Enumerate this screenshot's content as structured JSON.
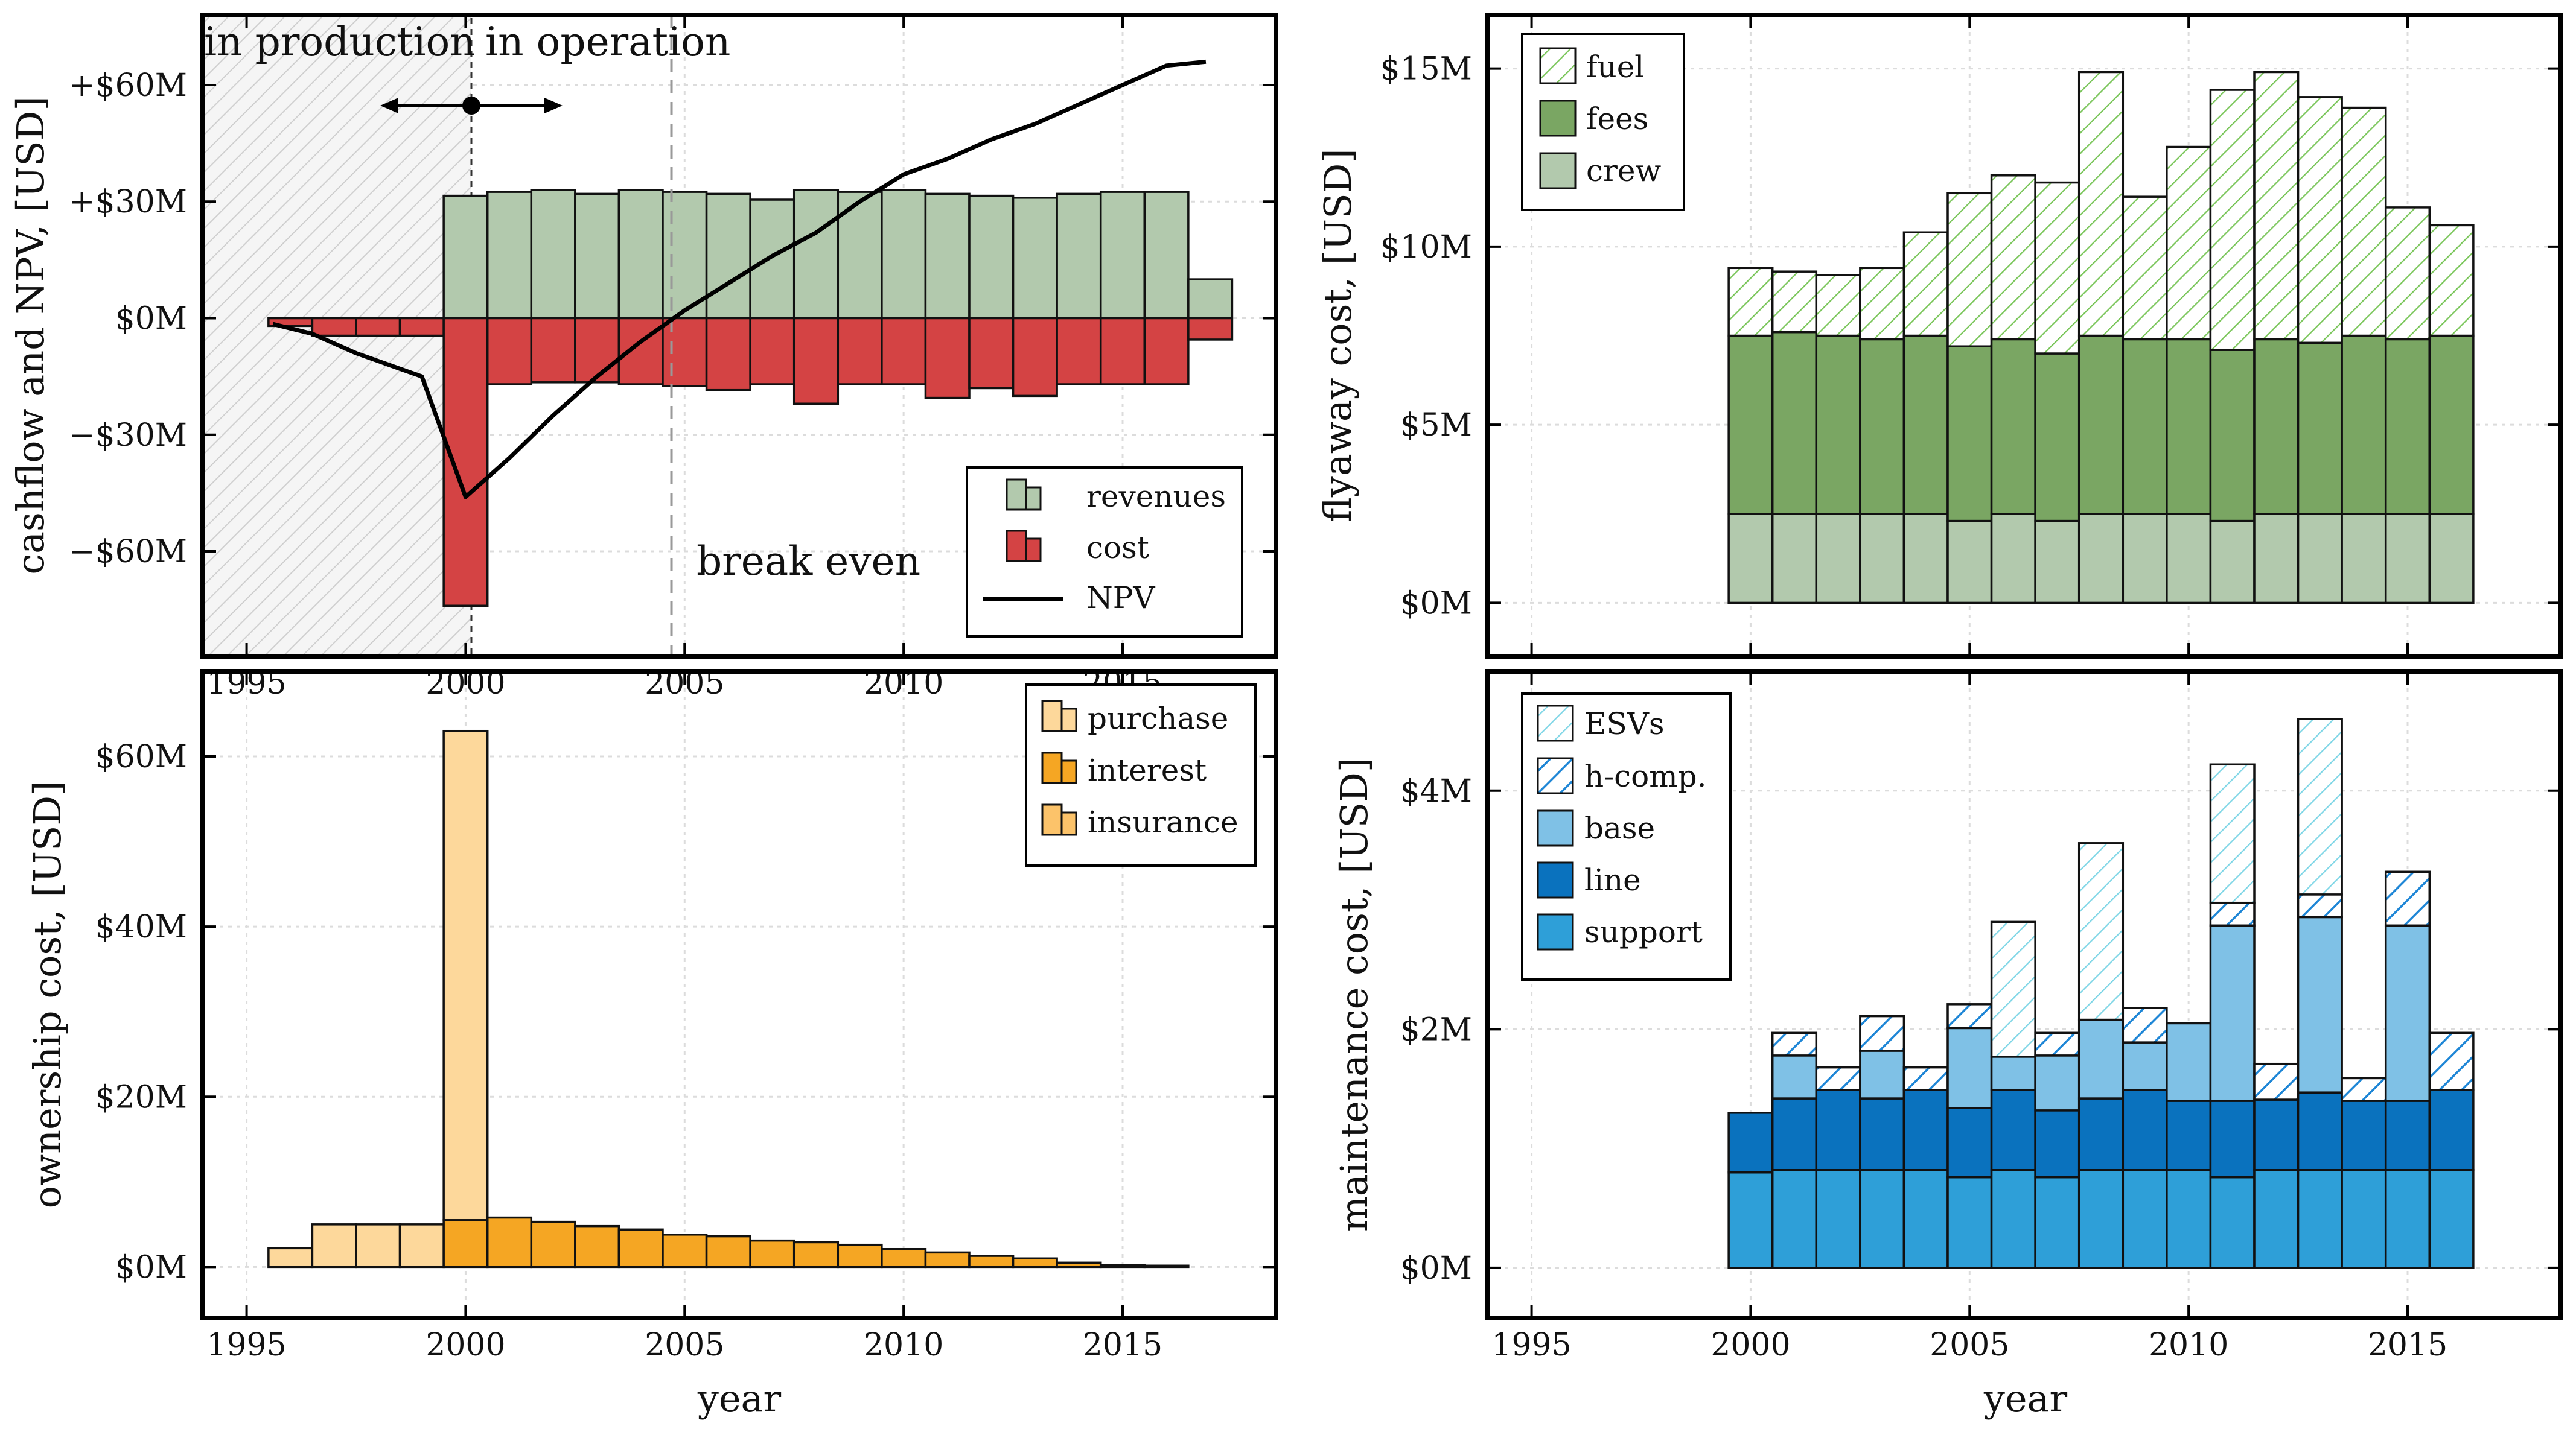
{
  "palette": {
    "revenues": "#b2c9ad",
    "cost": "#d44344",
    "crew": "#b2c9ad",
    "fees": "#7aa663",
    "fuel_line": "#79c559",
    "purchase": "#fdd89b",
    "interest": "#f5a623",
    "support": "#2e9fd8",
    "line": "#0a72be",
    "base": "#7fc1e6",
    "hcomp_line": "#1e86d6",
    "esv_line": "#7fd6e6"
  },
  "chart_data": [
    {
      "id": "cashflow",
      "type": "bar",
      "ylabel": "cashflow and NPV, [USD]",
      "xlim": [
        1994,
        2018.5
      ],
      "ylim": [
        -87,
        78
      ],
      "yticks": [
        -60,
        -30,
        0,
        30,
        60
      ],
      "ytick_labels": [
        "−$60M",
        "−$30M",
        "$0M",
        "+$30M",
        "+$60M"
      ],
      "xticks": [
        1995,
        2000,
        2005,
        2010,
        2015
      ],
      "xtick_labels": [
        "1995",
        "2000",
        "2005",
        "2010",
        "2015"
      ],
      "years": [
        1996,
        1997,
        1998,
        1999,
        2000,
        2001,
        2002,
        2003,
        2004,
        2005,
        2006,
        2007,
        2008,
        2009,
        2010,
        2011,
        2012,
        2013,
        2014,
        2015,
        2016,
        2017
      ],
      "series": [
        {
          "name": "revenues",
          "values": [
            0,
            0,
            0,
            0,
            31.5,
            32.5,
            33,
            32,
            33,
            32.5,
            32,
            30.5,
            33,
            32.5,
            33,
            32,
            31.5,
            31,
            32,
            32.5,
            32.5,
            10
          ]
        },
        {
          "name": "cost",
          "values": [
            -2,
            -4.5,
            -4.5,
            -4.5,
            -74,
            -17,
            -16.5,
            -16.5,
            -17,
            -17.5,
            -18.5,
            -17,
            -22,
            -17,
            -17,
            -20.5,
            -18,
            -20,
            -17,
            -17,
            -17,
            -5.5
          ]
        }
      ],
      "npv": {
        "name": "NPV",
        "x": [
          1995.6,
          1996.5,
          1997.5,
          1998.5,
          1999.0,
          2000.0,
          2001.0,
          2002.0,
          2003.0,
          2004.0,
          2005.0,
          2006.0,
          2007.0,
          2008.0,
          2009.0,
          2010.0,
          2011.0,
          2012.0,
          2013.0,
          2014.0,
          2015.0,
          2016.0,
          2016.9
        ],
        "y": [
          -1.5,
          -4,
          -9,
          -13,
          -15,
          -46,
          -36,
          -25,
          -15,
          -6,
          2,
          9,
          16,
          22,
          30,
          37,
          41,
          46,
          50,
          55,
          60,
          65,
          66
        ]
      },
      "annotations": {
        "in_production": "in production",
        "in_operation": "in operation",
        "break_even": "break even",
        "production_end": 2000,
        "break_even_year": 2004.7
      },
      "legend": {
        "position": "bottom-right",
        "entries": [
          "revenues",
          "cost",
          "NPV"
        ]
      }
    },
    {
      "id": "flyaway",
      "type": "bar",
      "ylabel": "flyaway cost, [USD]",
      "xlim": [
        1994,
        2018.5
      ],
      "ylim": [
        -1.5,
        16.5
      ],
      "yticks": [
        0,
        5,
        10,
        15
      ],
      "ytick_labels": [
        "$0M",
        "$5M",
        "$10M",
        "$15M"
      ],
      "xticks": [
        1995,
        2000,
        2005,
        2010,
        2015
      ],
      "years": [
        2000,
        2001,
        2002,
        2003,
        2004,
        2005,
        2006,
        2007,
        2008,
        2009,
        2010,
        2011,
        2012,
        2013,
        2014,
        2015,
        2016
      ],
      "series": [
        {
          "name": "crew",
          "values": [
            2.5,
            2.5,
            2.5,
            2.5,
            2.5,
            2.3,
            2.5,
            2.3,
            2.5,
            2.5,
            2.5,
            2.3,
            2.5,
            2.5,
            2.5,
            2.5,
            2.5
          ]
        },
        {
          "name": "fees",
          "values": [
            5.0,
            5.1,
            5.0,
            4.9,
            5.0,
            4.9,
            4.9,
            4.7,
            5.0,
            4.9,
            4.9,
            4.8,
            4.9,
            4.8,
            5.0,
            4.9,
            5.0
          ]
        },
        {
          "name": "fuel",
          "values": [
            1.9,
            1.7,
            1.7,
            2.0,
            2.9,
            4.3,
            4.6,
            4.8,
            7.4,
            4.0,
            5.4,
            7.3,
            7.5,
            6.9,
            6.4,
            3.7,
            3.1
          ]
        }
      ],
      "legend": {
        "position": "top-left",
        "entries": [
          "fuel",
          "fees",
          "crew"
        ]
      }
    },
    {
      "id": "ownership",
      "type": "bar",
      "ylabel": "ownership cost, [USD]",
      "xlabel": "year",
      "xlim": [
        1994,
        2018.5
      ],
      "ylim": [
        -6,
        70
      ],
      "yticks": [
        0,
        20,
        40,
        60
      ],
      "ytick_labels": [
        "$0M",
        "$20M",
        "$40M",
        "$60M"
      ],
      "xticks": [
        1995,
        2000,
        2005,
        2010,
        2015
      ],
      "xtick_labels": [
        "1995",
        "2000",
        "2005",
        "2010",
        "2015"
      ],
      "years": [
        1996,
        1997,
        1998,
        1999,
        2000,
        2001,
        2002,
        2003,
        2004,
        2005,
        2006,
        2007,
        2008,
        2009,
        2010,
        2011,
        2012,
        2013,
        2014,
        2015,
        2016
      ],
      "series": [
        {
          "name": "interest",
          "values": [
            0,
            0,
            0,
            0,
            5.5,
            5.8,
            5.3,
            4.8,
            4.4,
            3.8,
            3.6,
            3.1,
            2.9,
            2.6,
            2.1,
            1.7,
            1.3,
            1.0,
            0.5,
            0.25,
            0.15
          ]
        },
        {
          "name": "purchase",
          "values": [
            2.2,
            5.0,
            5.0,
            5.0,
            57.5,
            0,
            0,
            0,
            0,
            0,
            0,
            0,
            0,
            0,
            0,
            0,
            0,
            0,
            0,
            0,
            0
          ]
        },
        {
          "name": "insurance",
          "values": [
            0,
            0,
            0,
            0,
            0,
            0,
            0,
            0,
            0,
            0,
            0,
            0,
            0,
            0,
            0,
            0,
            0,
            0,
            0,
            0,
            0
          ]
        }
      ],
      "legend": {
        "position": "top-right",
        "entries": [
          "purchase",
          "interest",
          "insurance"
        ]
      }
    },
    {
      "id": "maintenance",
      "type": "bar",
      "ylabel": "maintenance cost, [USD]",
      "xlabel": "year",
      "xlim": [
        1994,
        2018.5
      ],
      "ylim": [
        -0.42,
        5.0
      ],
      "yticks": [
        0,
        2,
        4
      ],
      "ytick_labels": [
        "$0M",
        "$2M",
        "$4M"
      ],
      "xticks": [
        1995,
        2000,
        2005,
        2010,
        2015
      ],
      "xtick_labels": [
        "1995",
        "2000",
        "2005",
        "2010",
        "2015"
      ],
      "years": [
        2000,
        2001,
        2002,
        2003,
        2004,
        2005,
        2006,
        2007,
        2008,
        2009,
        2010,
        2011,
        2012,
        2013,
        2014,
        2015,
        2016
      ],
      "series": [
        {
          "name": "support",
          "values": [
            0.8,
            0.82,
            0.82,
            0.82,
            0.82,
            0.76,
            0.82,
            0.76,
            0.82,
            0.82,
            0.82,
            0.76,
            0.82,
            0.82,
            0.82,
            0.82,
            0.82
          ]
        },
        {
          "name": "line",
          "values": [
            0.5,
            0.6,
            0.67,
            0.6,
            0.67,
            0.58,
            0.67,
            0.56,
            0.6,
            0.67,
            0.58,
            0.64,
            0.59,
            0.65,
            0.58,
            0.58,
            0.67
          ]
        },
        {
          "name": "base",
          "values": [
            0,
            0.36,
            0,
            0.4,
            0,
            0.67,
            0.28,
            0.46,
            0.66,
            0.4,
            0.65,
            1.47,
            0,
            1.47,
            0,
            1.47,
            0
          ]
        },
        {
          "name": "h-comp.",
          "values": [
            0,
            0.19,
            0.19,
            0.29,
            0.19,
            0.2,
            0,
            0.19,
            0,
            0.29,
            0,
            0.19,
            0.3,
            0.19,
            0.19,
            0.45,
            0.48
          ]
        },
        {
          "name": "ESVs",
          "values": [
            0,
            0,
            0,
            0,
            0,
            0,
            1.13,
            0,
            1.48,
            0,
            0,
            1.16,
            0,
            1.47,
            0,
            0,
            0
          ]
        }
      ],
      "legend": {
        "position": "top-left",
        "entries": [
          "ESVs",
          "h-comp.",
          "base",
          "line",
          "support"
        ]
      }
    }
  ]
}
